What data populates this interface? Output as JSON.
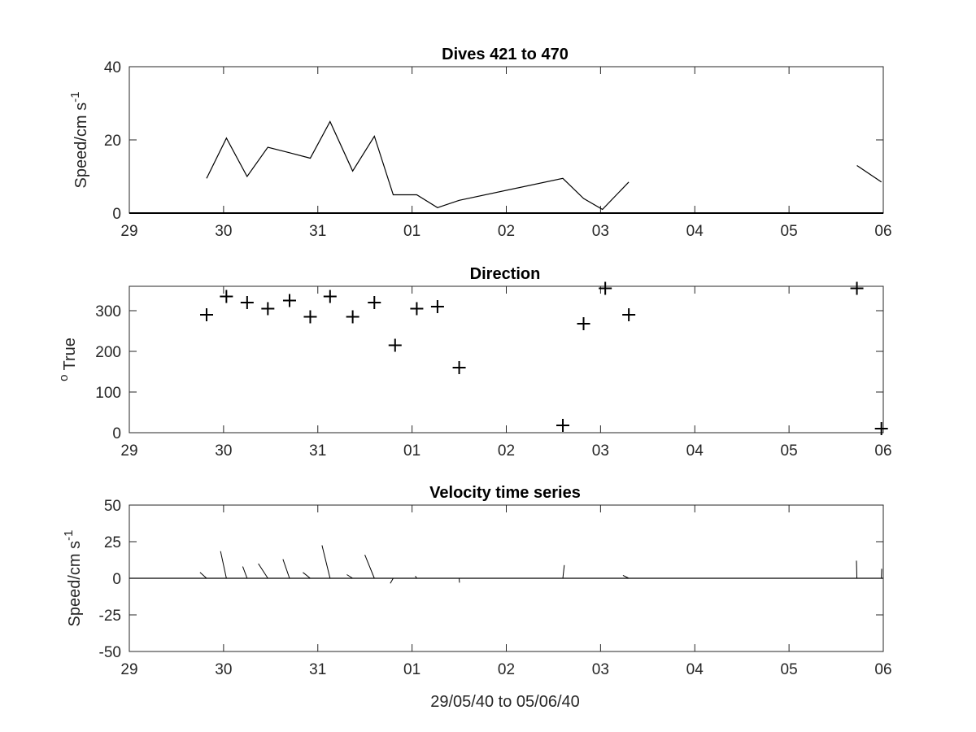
{
  "figure": {
    "xlabel": "29/05/40 to 05/06/40"
  },
  "chart_data": [
    {
      "type": "line",
      "title": "Dives 421 to 470",
      "ylabel": "Speed/cm s",
      "ylabel_superscript": "-1",
      "xlim": [
        29,
        37
      ],
      "ylim": [
        0,
        40
      ],
      "xticks": [
        29,
        30,
        31,
        32,
        33,
        34,
        35,
        36,
        37
      ],
      "xticklabels": [
        "29",
        "30",
        "31",
        "01",
        "02",
        "03",
        "04",
        "05",
        "06"
      ],
      "yticks": [
        0,
        20,
        40
      ],
      "yticklabels": [
        "0",
        "20",
        "40"
      ],
      "baseline": 0,
      "series": [
        {
          "x": [
            29.82,
            30.03,
            30.25,
            30.47,
            30.7,
            30.92,
            31.13,
            31.37,
            31.6,
            31.8,
            32.05,
            32.27,
            32.5,
            33.6,
            33.82,
            34.02,
            34.3
          ],
          "y": [
            9.5,
            20.5,
            10.0,
            18.0,
            16.5,
            15.0,
            25.0,
            11.5,
            21.0,
            5.0,
            5.0,
            1.5,
            3.5,
            9.5,
            4.0,
            1.0,
            8.5
          ]
        },
        {
          "x": [
            36.72,
            36.98
          ],
          "y": [
            13.0,
            8.5
          ]
        }
      ]
    },
    {
      "type": "scatter",
      "title": "Direction",
      "ylabel": "True",
      "ylabel_prefix": "o",
      "xlim": [
        29,
        37
      ],
      "ylim": [
        0,
        360
      ],
      "xticks": [
        29,
        30,
        31,
        32,
        33,
        34,
        35,
        36,
        37
      ],
      "xticklabels": [
        "29",
        "30",
        "31",
        "01",
        "02",
        "03",
        "04",
        "05",
        "06"
      ],
      "yticks": [
        0,
        100,
        200,
        300
      ],
      "yticklabels": [
        "0",
        "100",
        "200",
        "300"
      ],
      "marker": "+",
      "x": [
        29.82,
        30.03,
        30.25,
        30.47,
        30.7,
        30.92,
        31.13,
        31.37,
        31.6,
        31.82,
        32.05,
        32.27,
        32.5,
        33.6,
        33.82,
        34.05,
        34.3,
        36.72,
        36.98
      ],
      "y": [
        290,
        335,
        320,
        305,
        325,
        285,
        335,
        285,
        320,
        215,
        305,
        310,
        160,
        18,
        268,
        355,
        290,
        355,
        10
      ]
    },
    {
      "type": "line",
      "title": "Velocity time series",
      "ylabel": "Speed/cm s",
      "ylabel_superscript": "-1",
      "xlim": [
        29,
        37
      ],
      "ylim": [
        -50,
        50
      ],
      "xticks": [
        29,
        30,
        31,
        32,
        33,
        34,
        35,
        36,
        37
      ],
      "xticklabels": [
        "29",
        "30",
        "31",
        "01",
        "02",
        "03",
        "04",
        "05",
        "06"
      ],
      "yticks": [
        -50,
        -25,
        0,
        25,
        50
      ],
      "yticklabels": [
        "-50",
        "-25",
        "0",
        "25",
        "50"
      ],
      "baseline": 0,
      "vectors": [
        {
          "t": 29.82,
          "u": -4.5,
          "v": 4.0
        },
        {
          "t": 30.03,
          "u": -4.0,
          "v": 18.5
        },
        {
          "t": 30.25,
          "u": -3.0,
          "v": 8.0
        },
        {
          "t": 30.47,
          "u": -6.5,
          "v": 10.0
        },
        {
          "t": 30.7,
          "u": -4.5,
          "v": 13.0
        },
        {
          "t": 30.92,
          "u": -5.0,
          "v": 4.0
        },
        {
          "t": 31.13,
          "u": -5.5,
          "v": 22.5
        },
        {
          "t": 31.37,
          "u": -4.0,
          "v": 2.5
        },
        {
          "t": 31.6,
          "u": -6.5,
          "v": 16.0
        },
        {
          "t": 31.8,
          "u": -2.0,
          "v": -3.5
        },
        {
          "t": 32.05,
          "u": -1.0,
          "v": 1.5
        },
        {
          "t": 32.5,
          "u": 0.2,
          "v": -3.0
        },
        {
          "t": 33.6,
          "u": 1.0,
          "v": 9.0
        },
        {
          "t": 34.3,
          "u": -4.0,
          "v": 2.0
        },
        {
          "t": 36.72,
          "u": -0.3,
          "v": 12.0
        },
        {
          "t": 36.98,
          "u": 0.2,
          "v": 6.5
        }
      ]
    }
  ]
}
